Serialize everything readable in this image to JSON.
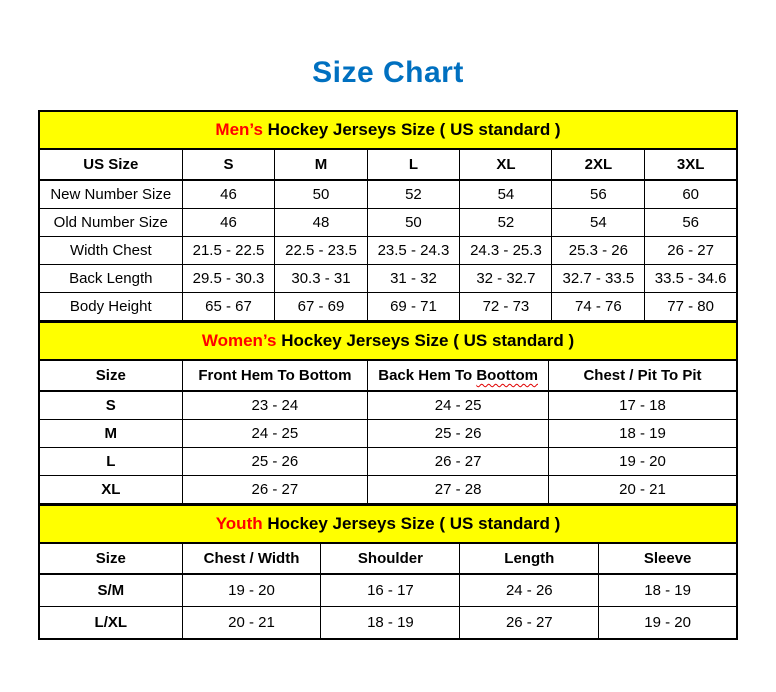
{
  "title": "Size Chart",
  "colors": {
    "title_blue": "#0070C0",
    "section_highlight_red": "#FF0000",
    "section_header_yellow": "#FFFF00",
    "border_black": "#000000",
    "squiggle_red": "#E00000"
  },
  "tables": [
    {
      "id": "mens",
      "section_label": {
        "highlight": "Men’s",
        "rest": " Hockey Jerseys Size ( US standard )"
      },
      "col_widths": [
        "20.5%",
        "13.3%",
        "13.2%",
        "13.3%",
        "13.2%",
        "13.3%",
        "13.2%"
      ],
      "header_row": [
        "US Size",
        "S",
        "M",
        "L",
        "XL",
        "2XL",
        "3XL"
      ],
      "bold_first_column": false,
      "rows": [
        [
          "New Number Size",
          "46",
          "50",
          "52",
          "54",
          "56",
          "60"
        ],
        [
          "Old Number Size",
          "46",
          "48",
          "50",
          "52",
          "54",
          "56"
        ],
        [
          "Width Chest",
          "21.5 - 22.5",
          "22.5 - 23.5",
          "23.5 - 24.3",
          "24.3 - 25.3",
          "25.3 - 26",
          "26 - 27"
        ],
        [
          "Back Length",
          "29.5 - 30.3",
          "30.3 - 31",
          "31 - 32",
          "32 - 32.7",
          "32.7 - 33.5",
          "33.5 - 34.6"
        ],
        [
          "Body Height",
          "65 - 67",
          "67 - 69",
          "69 - 71",
          "72 - 73",
          "74 - 76",
          "77 - 80"
        ]
      ]
    },
    {
      "id": "womens",
      "section_label": {
        "highlight": "Women’s",
        "rest": " Hockey Jerseys Size ( US standard )"
      },
      "col_widths": [
        "20.5%",
        "26.6%",
        "25.9%",
        "27.0%"
      ],
      "header_row": [
        "Size",
        "Front Hem To Bottom",
        {
          "prefix": "Back Hem To ",
          "squiggle": "Boottom"
        },
        "Chest / Pit To Pit"
      ],
      "bold_first_column": true,
      "rows": [
        [
          "S",
          "23 - 24",
          "24 - 25",
          "17 - 18"
        ],
        [
          "M",
          "24 - 25",
          "25 - 26",
          "18 - 19"
        ],
        [
          "L",
          "25 - 26",
          "26 - 27",
          "19 - 20"
        ],
        [
          "XL",
          "26 - 27",
          "27 - 28",
          "20 - 21"
        ]
      ]
    },
    {
      "id": "youth",
      "section_label": {
        "highlight": "Youth",
        "rest": " Hockey Jerseys Size ( US standard )"
      },
      "col_widths": [
        "20.5%",
        "19.9%",
        "19.9%",
        "19.9%",
        "19.8%"
      ],
      "header_row": [
        "Size",
        "Chest / Width",
        "Shoulder",
        "Length",
        "Sleeve"
      ],
      "bold_first_column": true,
      "rows": [
        [
          "S/M",
          "19 - 20",
          "16 - 17",
          "24 - 26",
          "18 - 19"
        ],
        [
          "L/XL",
          "20 - 21",
          "18 - 19",
          "26 - 27",
          "19 - 20"
        ]
      ]
    }
  ]
}
